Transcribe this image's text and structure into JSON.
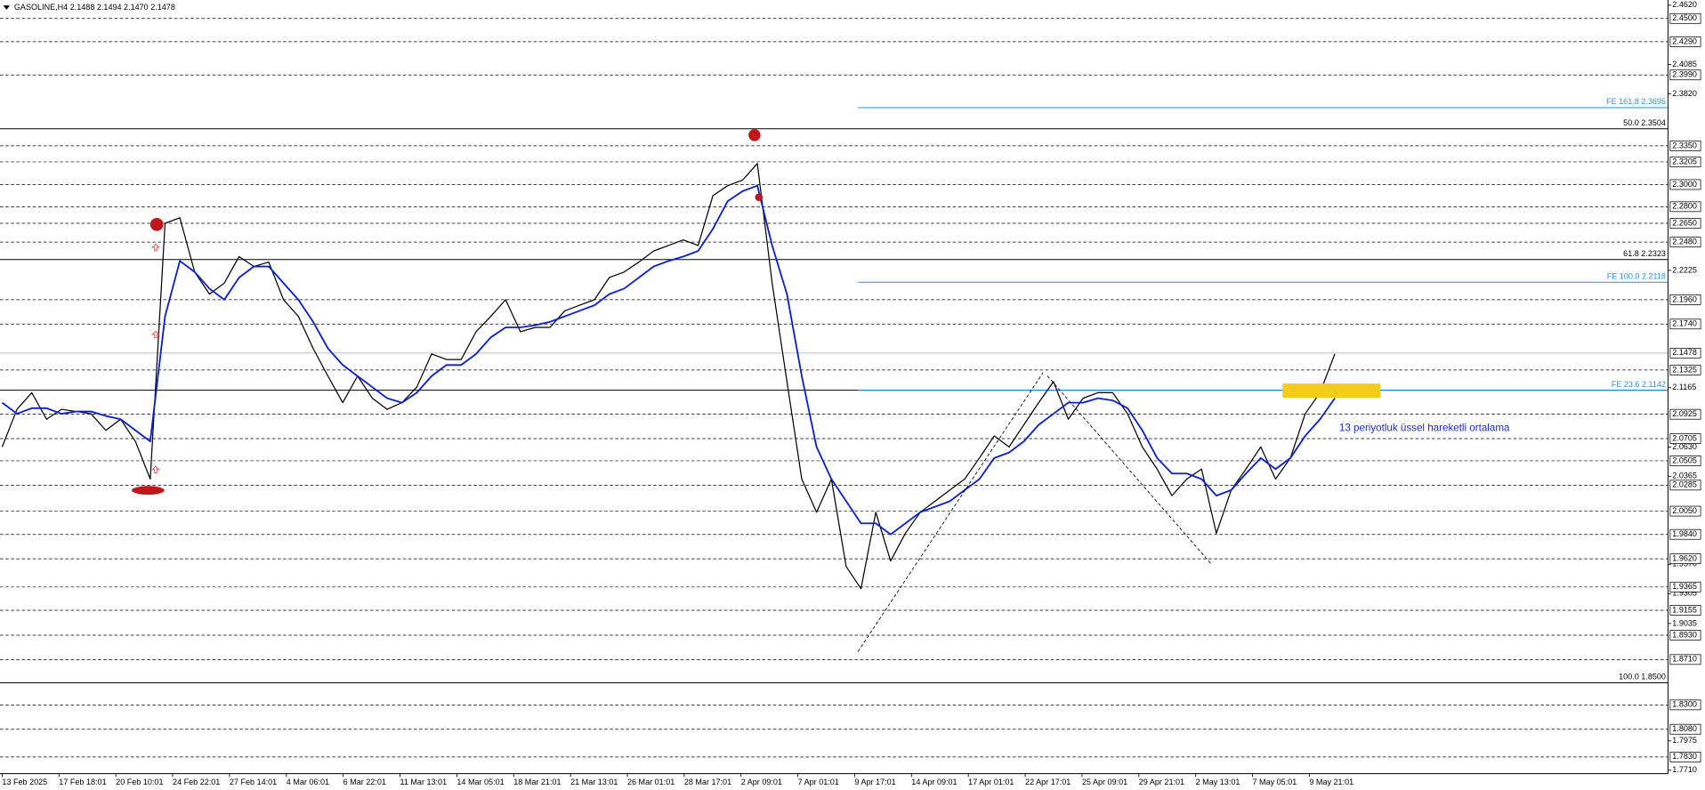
{
  "chart_data": {
    "type": "line",
    "title": "GASOLINE,H4  2.1488 2.1494 2.1470 2.1478",
    "annotation": "13 periyotluk üssel hareketli ortalama",
    "ylim": [
      1.7679,
      2.4667
    ],
    "yticks": [
      {
        "value": 2.462,
        "label": "2.4620"
      },
      {
        "value": 2.4085,
        "label": "2.4085"
      },
      {
        "value": 2.382,
        "label": "2.3820"
      },
      {
        "value": 2.2225,
        "label": "2.2225"
      },
      {
        "value": 2.1165,
        "label": "2.1165"
      },
      {
        "value": 2.063,
        "label": "2.0630"
      },
      {
        "value": 2.0365,
        "label": "2.0365"
      },
      {
        "value": 1.957,
        "label": "1.9570"
      },
      {
        "value": 1.9305,
        "label": "1.9305"
      },
      {
        "value": 1.9035,
        "label": "1.9035"
      },
      {
        "value": 1.7975,
        "label": "1.7975"
      },
      {
        "value": 1.771,
        "label": "1.7710"
      }
    ],
    "levels": [
      {
        "value": 2.45,
        "label": "2.4500"
      },
      {
        "value": 2.429,
        "label": "2.4290"
      },
      {
        "value": 2.399,
        "label": "2.3990"
      },
      {
        "value": 2.335,
        "label": "2.3350"
      },
      {
        "value": 2.3205,
        "label": "2.3205"
      },
      {
        "value": 2.3,
        "label": "2.3000"
      },
      {
        "value": 2.28,
        "label": "2.2800"
      },
      {
        "value": 2.265,
        "label": "2.2650"
      },
      {
        "value": 2.248,
        "label": "2.2480"
      },
      {
        "value": 2.196,
        "label": "2.1960"
      },
      {
        "value": 2.174,
        "label": "2.1740"
      },
      {
        "value": 2.1325,
        "label": "2.1325"
      },
      {
        "value": 2.0925,
        "label": "2.0925"
      },
      {
        "value": 2.0705,
        "label": "2.0705"
      },
      {
        "value": 2.0505,
        "label": "2.0505"
      },
      {
        "value": 2.0285,
        "label": "2.0285"
      },
      {
        "value": 2.005,
        "label": "2.0050"
      },
      {
        "value": 1.984,
        "label": "1.9840"
      },
      {
        "value": 1.962,
        "label": "1.9620"
      },
      {
        "value": 1.9365,
        "label": "1.9365"
      },
      {
        "value": 1.9155,
        "label": "1.9155"
      },
      {
        "value": 1.893,
        "label": "1.8930"
      },
      {
        "value": 1.871,
        "label": "1.8710"
      },
      {
        "value": 1.83,
        "label": "1.8300"
      },
      {
        "value": 1.808,
        "label": "1.8080"
      },
      {
        "value": 1.783,
        "label": "1.7830"
      }
    ],
    "current_price": {
      "value": 2.1478,
      "label": "2.1478"
    },
    "fib_levels": [
      {
        "value": 2.3504,
        "label": "50.0 2.3504"
      },
      {
        "value": 2.2323,
        "label": "61.8 2.2323"
      },
      {
        "value": 2.1142
      },
      {
        "value": 1.85,
        "label": "100.0 1.8500"
      }
    ],
    "fe_levels": [
      {
        "value": 2.3695,
        "label": "FE 161.8 2.3695"
      },
      {
        "value": 2.2118,
        "label": "FE 100.0 2.2118"
      },
      {
        "value": 2.1142,
        "label": "FE 23.6 2.1142"
      }
    ],
    "x_labels": [
      "13 Feb 2025",
      "17 Feb 18:01",
      "20 Feb 10:01",
      "24 Feb 22:01",
      "27 Feb 14:01",
      "4 Mar 06:01",
      "6 Mar 22:01",
      "11 Mar 13:01",
      "14 Mar 05:01",
      "18 Mar 21:01",
      "21 Mar 13:01",
      "26 Mar 01:01",
      "28 Mar 17:01",
      "2 Apr 09:01",
      "7 Apr 01:01",
      "9 Apr 17:01",
      "14 Apr 09:01",
      "17 Apr 01:01",
      "22 Apr 17:01",
      "25 Apr 09:01",
      "29 Apr 21:01",
      "2 May 13:01",
      "7 May 05:01",
      "9 May 21:01"
    ],
    "series": [
      {
        "color": "#000000",
        "values": [
          2.063,
          2.097,
          2.112,
          2.088,
          2.097,
          2.095,
          2.093,
          2.078,
          2.088,
          2.068,
          2.034,
          2.265,
          2.27,
          2.221,
          2.201,
          2.211,
          2.235,
          2.226,
          2.23,
          2.196,
          2.181,
          2.152,
          2.127,
          2.103,
          2.127,
          2.107,
          2.097,
          2.103,
          2.117,
          2.147,
          2.142,
          2.142,
          2.167,
          2.181,
          2.196,
          2.167,
          2.171,
          2.171,
          2.186,
          2.191,
          2.196,
          2.216,
          2.221,
          2.23,
          2.24,
          2.245,
          2.25,
          2.245,
          2.29,
          2.299,
          2.304,
          2.319,
          2.211,
          2.122,
          2.034,
          2.004,
          2.034,
          1.955,
          1.935,
          2.004,
          1.96,
          1.985,
          2.004,
          2.014,
          2.024,
          2.034,
          2.053,
          2.073,
          2.063,
          2.083,
          2.103,
          2.122,
          2.088,
          2.107,
          2.112,
          2.112,
          2.093,
          2.063,
          2.043,
          2.019,
          2.034,
          2.043,
          1.985,
          2.024,
          2.043,
          2.063,
          2.034,
          2.053,
          2.093,
          2.112,
          2.147
        ]
      },
      {
        "color": "#0a1fd6",
        "values": [
          2.103,
          2.093,
          2.098,
          2.098,
          2.093,
          2.095,
          2.095,
          2.091,
          2.088,
          2.078,
          2.068,
          2.181,
          2.231,
          2.221,
          2.206,
          2.196,
          2.216,
          2.226,
          2.226,
          2.211,
          2.196,
          2.176,
          2.152,
          2.137,
          2.127,
          2.117,
          2.107,
          2.103,
          2.112,
          2.127,
          2.137,
          2.137,
          2.147,
          2.162,
          2.171,
          2.171,
          2.173,
          2.176,
          2.181,
          2.186,
          2.191,
          2.201,
          2.206,
          2.216,
          2.226,
          2.231,
          2.235,
          2.24,
          2.26,
          2.285,
          2.294,
          2.299,
          2.245,
          2.201,
          2.127,
          2.063,
          2.034,
          2.014,
          1.994,
          1.994,
          1.984,
          1.994,
          2.004,
          2.009,
          2.014,
          2.024,
          2.034,
          2.053,
          2.058,
          2.068,
          2.083,
          2.093,
          2.103,
          2.103,
          2.107,
          2.105,
          2.098,
          2.078,
          2.053,
          2.039,
          2.039,
          2.034,
          2.019,
          2.024,
          2.039,
          2.053,
          2.043,
          2.053,
          2.073,
          2.088,
          2.107
        ]
      }
    ]
  }
}
